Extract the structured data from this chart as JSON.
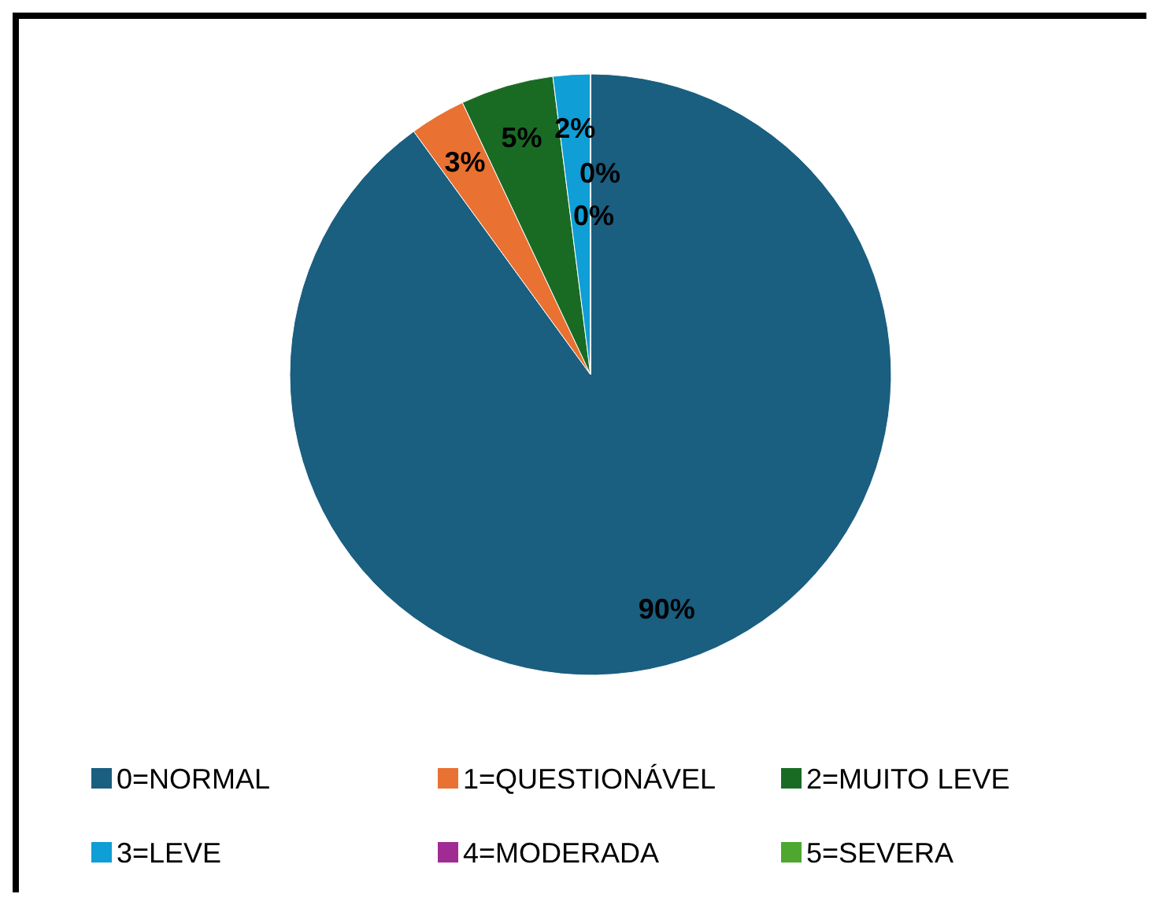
{
  "chart_data": {
    "type": "pie",
    "categories": [
      "0=NORMAL",
      "1=QUESTIONÁVEL",
      "2=MUITO LEVE",
      "3=LEVE",
      "4=MODERADA",
      "5=SEVERA"
    ],
    "values": [
      90,
      3,
      5,
      2,
      0,
      0
    ],
    "colors": [
      "#1a5e80",
      "#e97132",
      "#196b24",
      "#0f9ed5",
      "#a02b93",
      "#4ea72e"
    ],
    "value_labels": [
      "90%",
      "3%",
      "5%",
      "2%",
      "0%",
      "0%"
    ],
    "legend": "bottom"
  }
}
